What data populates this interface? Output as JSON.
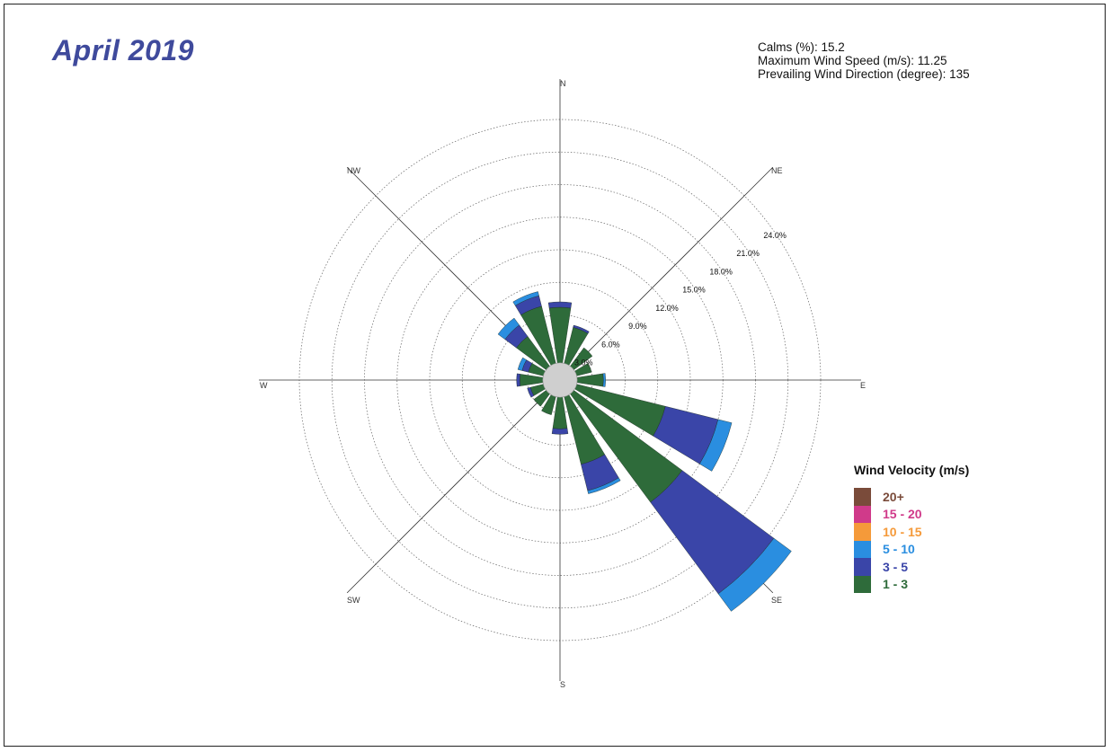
{
  "title": "April 2019",
  "stats": {
    "calms": "Calms (%):  15.2",
    "max_speed": "Maximum Wind Speed  (m/s):  11.25",
    "prevailing": "Prevailing  Wind Direction (degree):  135"
  },
  "legend": {
    "title": "Wind Velocity (m/s)",
    "items": [
      {
        "label": "20+",
        "color": "#7a4b3a"
      },
      {
        "label": "15 - 20",
        "color": "#d03a8a"
      },
      {
        "label": "10 - 15",
        "color": "#f59a3a"
      },
      {
        "label": "5 - 10",
        "color": "#2a8ee0"
      },
      {
        "label": "3 - 5",
        "color": "#3a45a8"
      },
      {
        "label": "1 - 3",
        "color": "#2e6b3a"
      }
    ]
  },
  "chart_data": {
    "type": "wind_rose",
    "directions": [
      "N",
      "NNE",
      "NE",
      "ENE",
      "E",
      "ESE",
      "SE",
      "SSE",
      "S",
      "SSW",
      "SW",
      "WSW",
      "W",
      "WNW",
      "NW",
      "NNW"
    ],
    "compass_labels": [
      "N",
      "NE",
      "E",
      "SE",
      "S",
      "SW",
      "W",
      "NW"
    ],
    "radial_ticks": [
      "3.0%",
      "6.0%",
      "9.0%",
      "12.0%",
      "15.0%",
      "18.0%",
      "21.0%",
      "24.0%"
    ],
    "radial_max": 24,
    "calm_circle_percent": 1.5,
    "series": [
      {
        "name": "1 - 3",
        "values": [
          5.2,
          3.5,
          2.2,
          1.5,
          2.5,
          8.5,
          12.5,
          6.5,
          3.0,
          1.8,
          1.5,
          1.3,
          2.2,
          1.5,
          3.5,
          5.5
        ]
      },
      {
        "name": "3 - 5",
        "values": [
          0.5,
          0.2,
          0.0,
          0.0,
          0.0,
          5.0,
          10.5,
          2.5,
          0.5,
          0.0,
          0.0,
          0.3,
          0.3,
          0.6,
          1.3,
          1.0
        ]
      },
      {
        "name": "5 - 10",
        "values": [
          0.0,
          0.0,
          0.0,
          0.0,
          0.2,
          1.3,
          2.0,
          0.3,
          0.0,
          0.0,
          0.0,
          0.0,
          0.0,
          0.4,
          0.8,
          0.4
        ]
      },
      {
        "name": "10 - 15",
        "values": [
          0,
          0,
          0,
          0,
          0,
          0,
          0,
          0,
          0,
          0,
          0,
          0,
          0,
          0,
          0,
          0
        ]
      },
      {
        "name": "15 - 20",
        "values": [
          0,
          0,
          0,
          0,
          0,
          0,
          0,
          0,
          0,
          0,
          0,
          0,
          0,
          0,
          0,
          0
        ]
      },
      {
        "name": "20+",
        "values": [
          0,
          0,
          0,
          0,
          0,
          0,
          0,
          0,
          0,
          0,
          0,
          0,
          0,
          0,
          0,
          0
        ]
      }
    ]
  }
}
